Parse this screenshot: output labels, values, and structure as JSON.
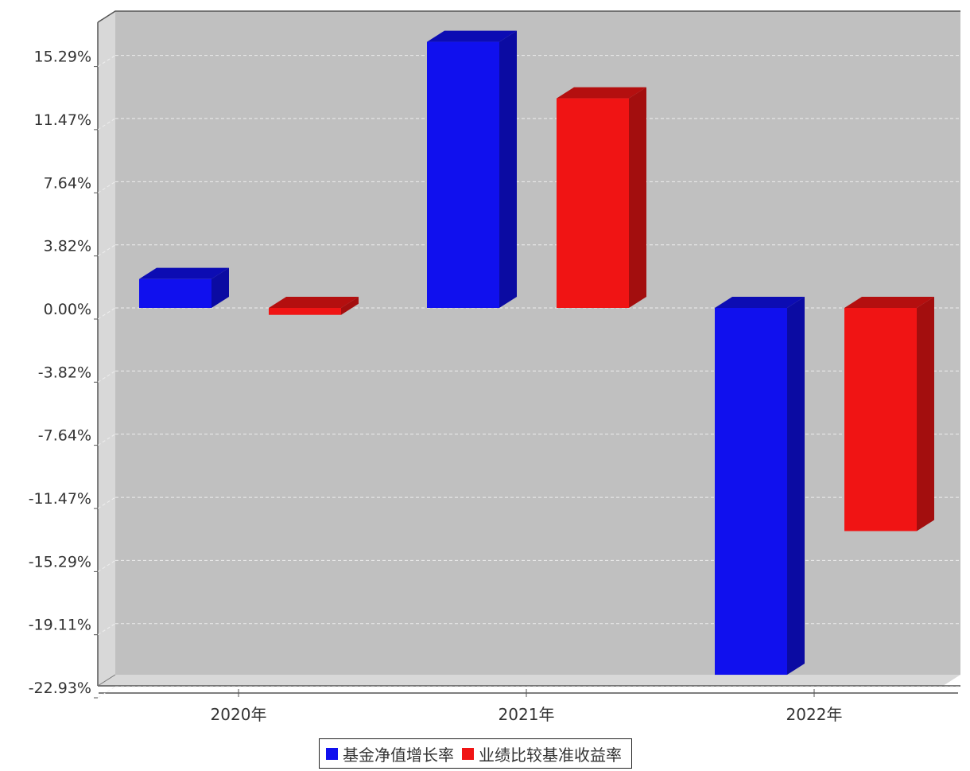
{
  "chart_data": {
    "type": "bar",
    "categories": [
      "2020年",
      "2021年",
      "2022年"
    ],
    "series": [
      {
        "name": "基金净值增长率",
        "values": [
          1.75,
          16.11,
          -22.21
        ],
        "color": "#1010ee"
      },
      {
        "name": "业绩比较基准收益率",
        "values": [
          -0.42,
          12.69,
          -13.51
        ],
        "color": "#f01414"
      }
    ],
    "yticks": [
      "15.29%",
      "11.47%",
      "7.64%",
      "3.82%",
      "0.00%",
      "-3.82%",
      "-7.64%",
      "-11.47%",
      "-15.29%",
      "-19.11%",
      "-22.93%"
    ],
    "ytick_values": [
      15.29,
      11.47,
      7.64,
      3.82,
      0.0,
      -3.82,
      -7.64,
      -11.47,
      -15.29,
      -19.11,
      -22.93
    ],
    "ylim": [
      -23.5,
      17.3
    ],
    "grid": true,
    "legend_position": "bottom-center",
    "plot_background": "#c0c0c0",
    "title": "",
    "xlabel": "",
    "ylabel": ""
  }
}
